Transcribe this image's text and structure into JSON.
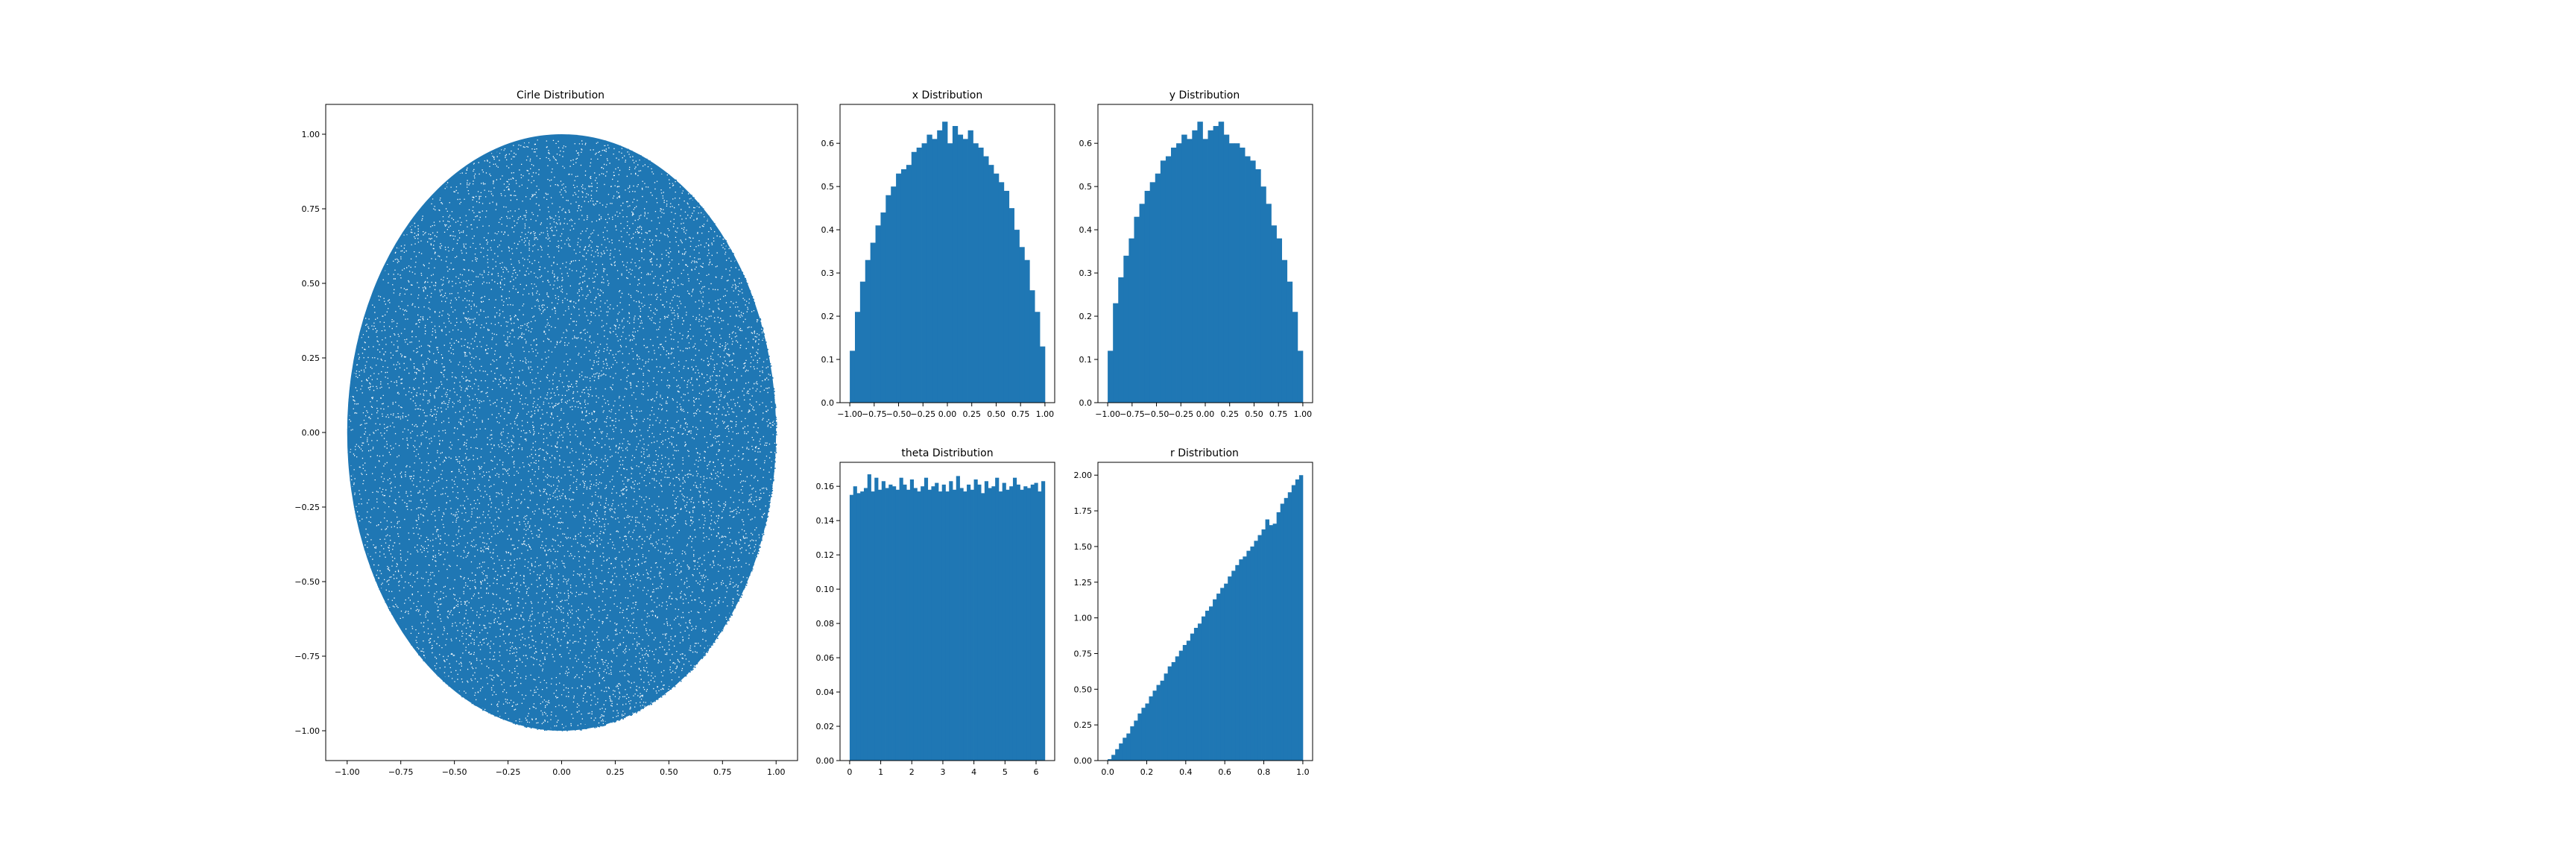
{
  "chart_data": [
    {
      "id": "circle",
      "type": "scatter",
      "title": "Cirle Distribution",
      "xlim": [
        -1.1,
        1.1
      ],
      "ylim": [
        -1.1,
        1.1
      ],
      "xticks": [
        -1.0,
        -0.75,
        -0.5,
        -0.25,
        0.0,
        0.25,
        0.5,
        0.75,
        1.0
      ],
      "yticks": [
        -1.0,
        -0.75,
        -0.5,
        -0.25,
        0.0,
        0.25,
        0.5,
        0.75,
        1.0
      ],
      "xtick_labels": [
        "−1.00",
        "−0.75",
        "−0.50",
        "−0.25",
        "0.00",
        "0.25",
        "0.50",
        "0.75",
        "1.00"
      ],
      "ytick_labels": [
        "−1.00",
        "−0.75",
        "−0.50",
        "−0.25",
        "0.00",
        "0.25",
        "0.50",
        "0.75",
        "1.00"
      ],
      "distribution": "uniform points in unit disk (x^2 + y^2 <= 1)",
      "color": "#1f77b4",
      "grid": false
    },
    {
      "id": "x",
      "type": "bar",
      "title": "x Distribution",
      "xlim": [
        -1.1,
        1.1
      ],
      "ylim": [
        0,
        0.69
      ],
      "bin_range": [
        -1,
        1
      ],
      "values": [
        0.12,
        0.21,
        0.28,
        0.33,
        0.37,
        0.41,
        0.44,
        0.48,
        0.5,
        0.53,
        0.54,
        0.55,
        0.58,
        0.59,
        0.6,
        0.62,
        0.61,
        0.63,
        0.65,
        0.6,
        0.64,
        0.62,
        0.61,
        0.63,
        0.6,
        0.59,
        0.57,
        0.55,
        0.53,
        0.51,
        0.49,
        0.45,
        0.4,
        0.36,
        0.33,
        0.26,
        0.21,
        0.13
      ],
      "xticks": [
        -1.0,
        -0.75,
        -0.5,
        -0.25,
        0.0,
        0.25,
        0.5,
        0.75,
        1.0
      ],
      "yticks": [
        0.0,
        0.1,
        0.2,
        0.3,
        0.4,
        0.5,
        0.6
      ],
      "xtick_labels": [
        "−1.00",
        "−0.75",
        "−0.50",
        "−0.25",
        "0.00",
        "0.25",
        "0.50",
        "0.75",
        "1.00"
      ],
      "ytick_labels": [
        "0.0",
        "0.1",
        "0.2",
        "0.3",
        "0.4",
        "0.5",
        "0.6"
      ],
      "color": "#1f77b4",
      "grid": false
    },
    {
      "id": "y",
      "type": "bar",
      "title": "y Distribution",
      "xlim": [
        -1.1,
        1.1
      ],
      "ylim": [
        0,
        0.69
      ],
      "bin_range": [
        -1,
        1
      ],
      "values": [
        0.12,
        0.23,
        0.29,
        0.34,
        0.38,
        0.43,
        0.46,
        0.49,
        0.51,
        0.53,
        0.56,
        0.57,
        0.59,
        0.6,
        0.62,
        0.61,
        0.63,
        0.65,
        0.61,
        0.63,
        0.64,
        0.65,
        0.62,
        0.6,
        0.6,
        0.59,
        0.57,
        0.56,
        0.54,
        0.5,
        0.46,
        0.41,
        0.38,
        0.33,
        0.28,
        0.21,
        0.12
      ],
      "xticks": [
        -1.0,
        -0.75,
        -0.5,
        -0.25,
        0.0,
        0.25,
        0.5,
        0.75,
        1.0
      ],
      "yticks": [
        0.0,
        0.1,
        0.2,
        0.3,
        0.4,
        0.5,
        0.6
      ],
      "xtick_labels": [
        "−1.00",
        "−0.75",
        "−0.50",
        "−0.25",
        "0.00",
        "0.25",
        "0.50",
        "0.75",
        "1.00"
      ],
      "ytick_labels": [
        "0.0",
        "0.1",
        "0.2",
        "0.3",
        "0.4",
        "0.5",
        "0.6"
      ],
      "color": "#1f77b4",
      "grid": false
    },
    {
      "id": "theta",
      "type": "bar",
      "title": "theta Distribution",
      "xlim": [
        -0.31,
        6.6
      ],
      "ylim": [
        0,
        0.174
      ],
      "bin_range": [
        0,
        6.2832
      ],
      "values": [
        0.155,
        0.16,
        0.156,
        0.157,
        0.159,
        0.167,
        0.157,
        0.165,
        0.158,
        0.163,
        0.159,
        0.161,
        0.16,
        0.158,
        0.165,
        0.161,
        0.158,
        0.164,
        0.159,
        0.157,
        0.16,
        0.165,
        0.158,
        0.16,
        0.162,
        0.157,
        0.161,
        0.157,
        0.163,
        0.158,
        0.166,
        0.159,
        0.157,
        0.161,
        0.158,
        0.164,
        0.161,
        0.156,
        0.163,
        0.159,
        0.16,
        0.165,
        0.157,
        0.162,
        0.158,
        0.16,
        0.165,
        0.161,
        0.158,
        0.16,
        0.159,
        0.161,
        0.162,
        0.157,
        0.163
      ],
      "xticks": [
        0,
        1,
        2,
        3,
        4,
        5,
        6
      ],
      "yticks": [
        0.0,
        0.02,
        0.04,
        0.06,
        0.08,
        0.1,
        0.12,
        0.14,
        0.16
      ],
      "xtick_labels": [
        "0",
        "1",
        "2",
        "3",
        "4",
        "5",
        "6"
      ],
      "ytick_labels": [
        "0.00",
        "0.02",
        "0.04",
        "0.06",
        "0.08",
        "0.10",
        "0.12",
        "0.14",
        "0.16"
      ],
      "color": "#1f77b4",
      "grid": false
    },
    {
      "id": "r",
      "type": "bar",
      "title": "r Distribution",
      "xlim": [
        -0.05,
        1.05
      ],
      "ylim": [
        0,
        2.09
      ],
      "bin_range": [
        0,
        1
      ],
      "values": [
        0.01,
        0.04,
        0.08,
        0.12,
        0.16,
        0.19,
        0.24,
        0.28,
        0.33,
        0.37,
        0.4,
        0.45,
        0.49,
        0.53,
        0.56,
        0.61,
        0.66,
        0.69,
        0.73,
        0.77,
        0.81,
        0.84,
        0.89,
        0.93,
        0.96,
        1.01,
        1.05,
        1.08,
        1.13,
        1.17,
        1.21,
        1.24,
        1.29,
        1.33,
        1.37,
        1.41,
        1.43,
        1.47,
        1.5,
        1.54,
        1.58,
        1.62,
        1.69,
        1.65,
        1.66,
        1.74,
        1.8,
        1.84,
        1.88,
        1.93,
        1.97,
        2.0
      ],
      "xticks": [
        0.0,
        0.2,
        0.4,
        0.6,
        0.8,
        1.0
      ],
      "yticks": [
        0.0,
        0.25,
        0.5,
        0.75,
        1.0,
        1.25,
        1.5,
        1.75,
        2.0
      ],
      "xtick_labels": [
        "0.0",
        "0.2",
        "0.4",
        "0.6",
        "0.8",
        "1.0"
      ],
      "ytick_labels": [
        "0.00",
        "0.25",
        "0.50",
        "0.75",
        "1.00",
        "1.25",
        "1.50",
        "1.75",
        "2.00"
      ],
      "color": "#1f77b4",
      "grid": false
    }
  ]
}
